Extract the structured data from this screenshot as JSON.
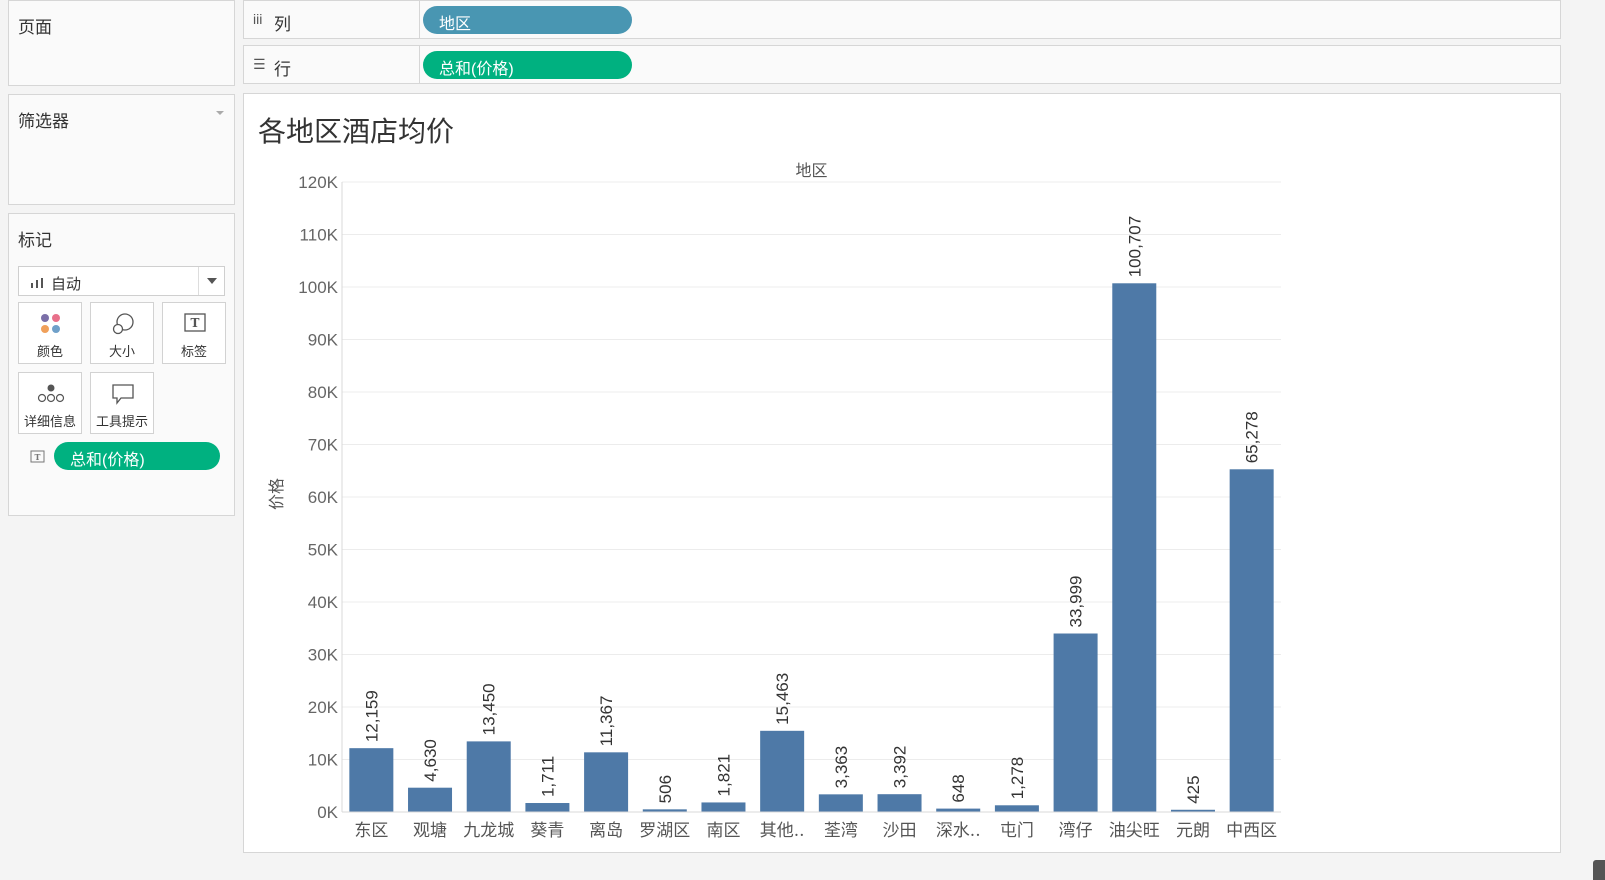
{
  "pages_panel": {
    "title": "页面"
  },
  "filters_panel": {
    "title": "筛选器"
  },
  "marks_panel": {
    "title": "标记",
    "mark_type": "自动",
    "buttons": [
      {
        "label": "颜色",
        "icon": "color-dots-icon"
      },
      {
        "label": "大小",
        "icon": "size-circles-icon"
      },
      {
        "label": "标签",
        "icon": "label-text-icon"
      },
      {
        "label": "详细信息",
        "icon": "detail-dots-icon"
      },
      {
        "label": "工具提示",
        "icon": "tooltip-bubble-icon"
      }
    ],
    "label_pill": "总和(价格)"
  },
  "columns_shelf": {
    "icon": "iii",
    "label": "列",
    "pill": "地区"
  },
  "rows_shelf": {
    "icon": "☰",
    "label": "行",
    "pill": "总和(价格)"
  },
  "colors": {
    "bar": "#4e79a7",
    "pill_dimension": "#4996b2",
    "pill_measure": "#00b180"
  },
  "chart_data": {
    "type": "bar",
    "title": "各地区酒店均价",
    "header_label": "地区",
    "xlabel": "",
    "ylabel": "价格",
    "ylim": [
      0,
      120000
    ],
    "yticks": [
      0,
      10000,
      20000,
      30000,
      40000,
      50000,
      60000,
      70000,
      80000,
      90000,
      100000,
      110000,
      120000
    ],
    "ytick_labels": [
      "0K",
      "10K",
      "20K",
      "30K",
      "40K",
      "50K",
      "60K",
      "70K",
      "80K",
      "90K",
      "100K",
      "110K",
      "120K"
    ],
    "categories": [
      "东区",
      "观塘",
      "九龙城",
      "葵青",
      "离岛",
      "罗湖区",
      "南区",
      "其他..",
      "荃湾",
      "沙田",
      "深水..",
      "屯门",
      "湾仔",
      "油尖旺",
      "元朗",
      "中西区"
    ],
    "values": [
      12159,
      4630,
      13450,
      1711,
      11367,
      506,
      1821,
      15463,
      3363,
      3392,
      648,
      1278,
      33999,
      100707,
      425,
      65278
    ],
    "value_labels": [
      "12,159",
      "4,630",
      "13,450",
      "1,711",
      "11,367",
      "506",
      "1,821",
      "15,463",
      "3,363",
      "3,392",
      "648",
      "1,278",
      "33,999",
      "100,707",
      "425",
      "65,278"
    ]
  }
}
